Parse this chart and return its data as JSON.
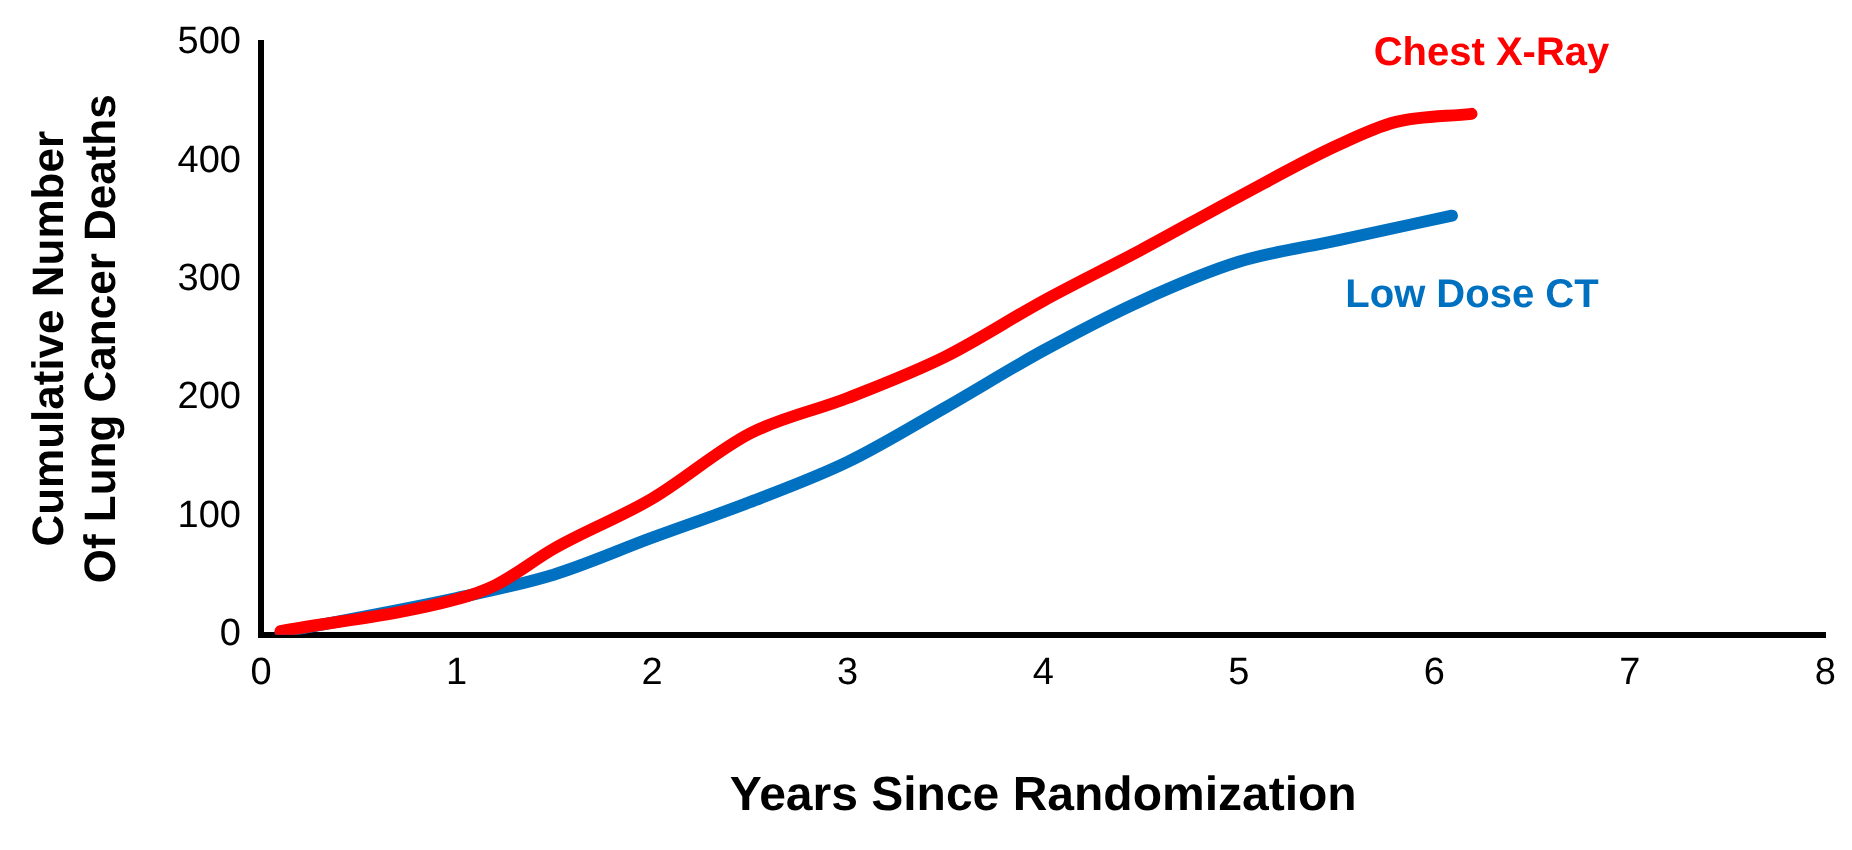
{
  "chart_data": {
    "type": "line",
    "xlabel": "Years Since Randomization",
    "ylabel": "Cumulative Number\nOf Lung Cancer Deaths",
    "xlim": [
      0,
      8
    ],
    "xticks": [
      0,
      1,
      2,
      3,
      4,
      5,
      6,
      7,
      8
    ],
    "ylim": [
      0,
      500
    ],
    "yticks": [
      0,
      100,
      200,
      300,
      400,
      500
    ],
    "grid": false,
    "legend": false,
    "marker": "none",
    "line_style": "solid",
    "series": [
      {
        "name": "Chest X-Ray",
        "color": "#ff0000",
        "x": [
          0.1,
          1,
          1.2,
          1.5,
          2,
          2.5,
          3,
          3.5,
          4,
          4.5,
          5,
          5.5,
          5.8,
          6.19
        ],
        "values": [
          3,
          30,
          42,
          73,
          115,
          170,
          200,
          235,
          282,
          325,
          370,
          413,
          433,
          440
        ]
      },
      {
        "name": "Low Dose CT",
        "color": "#0070c0",
        "x": [
          0.1,
          1,
          1.5,
          2,
          2.5,
          3,
          3.5,
          4,
          4.5,
          5,
          5.5,
          6.09
        ],
        "values": [
          2,
          31,
          51,
          82,
          112,
          146,
          192,
          240,
          282,
          315,
          333,
          354
        ]
      }
    ]
  }
}
